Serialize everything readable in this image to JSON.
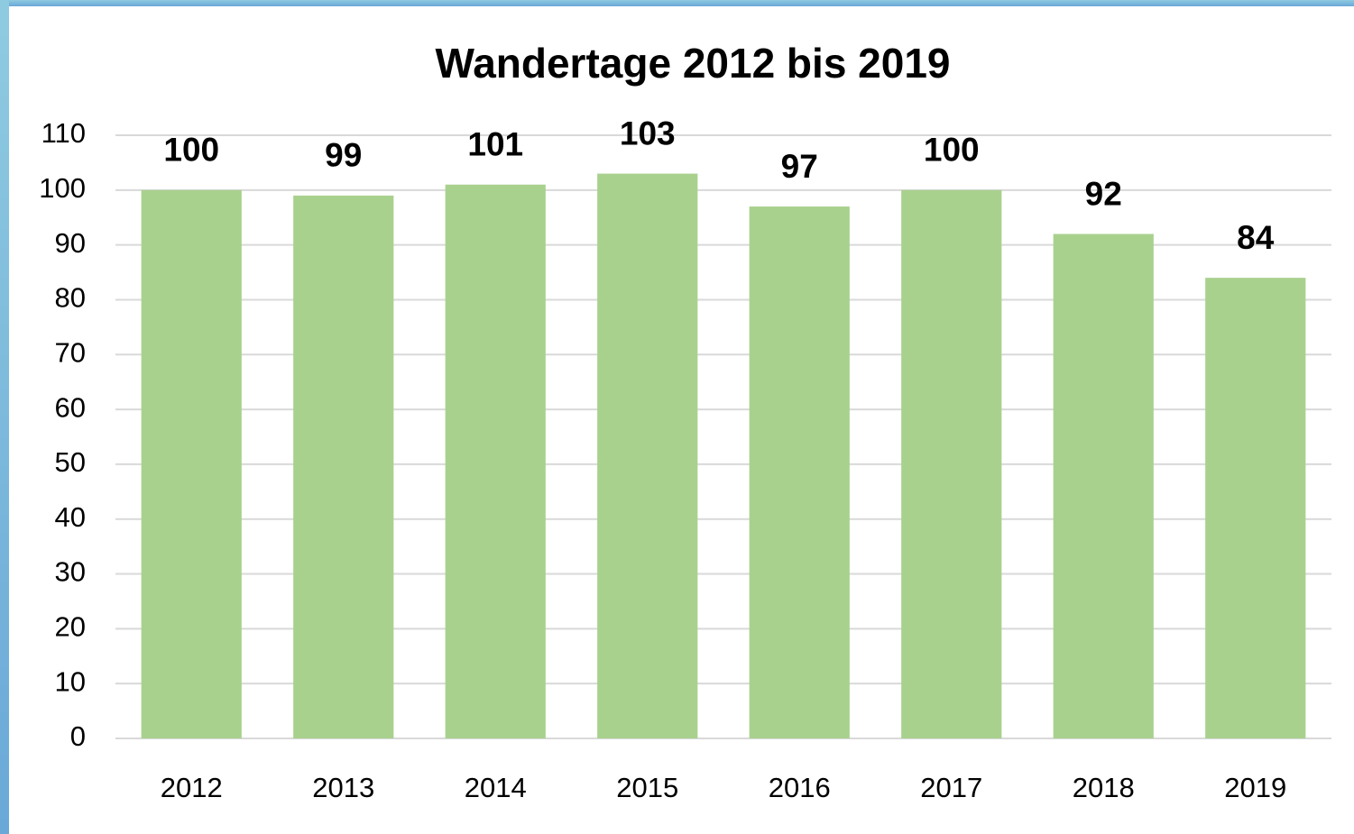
{
  "chart_data": {
    "type": "bar",
    "title": "Wandertage 2012 bis 2019",
    "categories": [
      "2012",
      "2013",
      "2014",
      "2015",
      "2016",
      "2017",
      "2018",
      "2019"
    ],
    "values": [
      100,
      99,
      101,
      103,
      97,
      100,
      92,
      84
    ],
    "color": "#a9d18e",
    "ylim": [
      0,
      110
    ],
    "yticks": [
      0,
      10,
      20,
      30,
      40,
      50,
      60,
      70,
      80,
      90,
      100,
      110
    ],
    "grid": true
  }
}
